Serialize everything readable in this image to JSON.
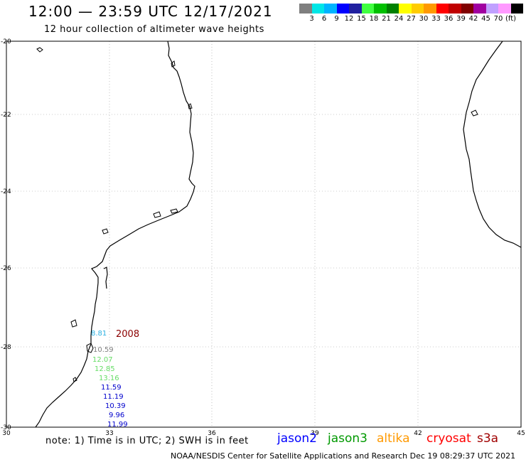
{
  "header": {
    "title": "12:00 — 23:59 UTC 12/17/2021",
    "subtitle": "12 hour collection of altimeter wave heights"
  },
  "legend": {
    "colors": [
      "#7f7f7f",
      "#00e6e6",
      "#00b4ff",
      "#0000ff",
      "#2020a0",
      "#40ff40",
      "#00c000",
      "#008000",
      "#ffff00",
      "#ffcc00",
      "#ff9900",
      "#ff0000",
      "#c00000",
      "#800000",
      "#a000a0",
      "#c0a0ff",
      "#ff99ff",
      "#000000"
    ],
    "labels": [
      "3",
      "6",
      "9",
      "12",
      "15",
      "18",
      "21",
      "24",
      "27",
      "30",
      "33",
      "36",
      "39",
      "42",
      "45",
      "70",
      "(ft)"
    ]
  },
  "map": {
    "lat_labels": [
      "-20",
      "-22",
      "-24",
      "-26",
      "-28",
      "-30"
    ],
    "lon_labels": [
      "30",
      "33",
      "36",
      "39",
      "42",
      "45"
    ],
    "annotation": {
      "text": "2008",
      "color": "#8b0000"
    },
    "observations": [
      {
        "text": "8.81",
        "color": "#2ab0e0"
      },
      {
        "text": "10.59",
        "color": "#808080"
      },
      {
        "text": "12.07",
        "color": "#66dd66"
      },
      {
        "text": "12.85",
        "color": "#66dd66"
      },
      {
        "text": "13.16",
        "color": "#66dd66"
      },
      {
        "text": "11.59",
        "color": "#0000cc"
      },
      {
        "text": "11.19",
        "color": "#0000cc"
      },
      {
        "text": "10.39",
        "color": "#0000cc"
      },
      {
        "text": "9.96",
        "color": "#0000cc"
      },
      {
        "text": "11.99",
        "color": "#0000cc"
      }
    ]
  },
  "footer": {
    "note": "note: 1) Time is in UTC; 2) SWH is in feet",
    "satellites": [
      {
        "name": "jason2",
        "color": "#0000ff"
      },
      {
        "name": "jason3",
        "color": "#009900"
      },
      {
        "name": "altika",
        "color": "#ff9900"
      },
      {
        "name": "cryosat",
        "color": "#ff0000"
      },
      {
        "name": "s3a",
        "color": "#a00000"
      }
    ],
    "credit": "NOAA/NESDIS Center for Satellite Applications and Research    Dec 19 08:29:37 UTC 2021"
  }
}
